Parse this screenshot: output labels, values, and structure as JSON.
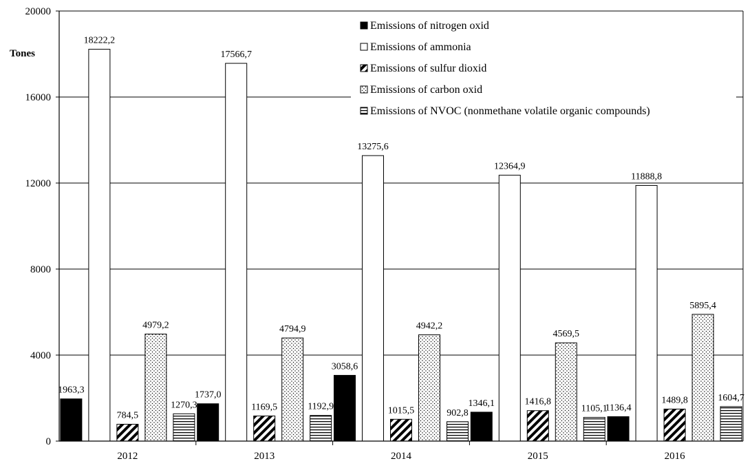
{
  "chart_data": {
    "type": "bar",
    "title": "",
    "xlabel": "",
    "ylabel": "Tones",
    "categories": [
      "2012",
      "2013",
      "2014",
      "2015",
      "2016"
    ],
    "ylim": [
      0,
      20000
    ],
    "yticks": [
      "0",
      "4000",
      "8000",
      "12000",
      "16000",
      "20000"
    ],
    "grid": "horizontal",
    "legend_position": "top-right",
    "series": [
      {
        "name": "Emissions of nitrogen oxid",
        "pattern": "solid-black",
        "values": [
          1963.3,
          1737.0,
          3058.6,
          1346.1,
          1136.4
        ],
        "labels": [
          "1963,3",
          "1737,0",
          "3058,6",
          "1346,1",
          "1136,4"
        ]
      },
      {
        "name": "Emissions of ammonia",
        "pattern": "white",
        "values": [
          18222.2,
          17566.7,
          13275.6,
          12364.9,
          11888.8
        ],
        "labels": [
          "18222,2",
          "17566,7",
          "13275,6",
          "12364,9",
          "11888,8"
        ]
      },
      {
        "name": "Emissions of sulfur dioxid",
        "pattern": "diagonal-hatch",
        "values": [
          784.5,
          1169.5,
          1015.5,
          1416.8,
          1489.8
        ],
        "labels": [
          "784,5",
          "1169,5",
          "1015,5",
          "1416,8",
          "1489,8"
        ]
      },
      {
        "name": "Emissions of carbon oxid",
        "pattern": "dots",
        "values": [
          4979.2,
          4794.9,
          4942.2,
          4569.5,
          5895.4
        ],
        "labels": [
          "4979,2",
          "4794,9",
          "4942,2",
          "4569,5",
          "5895,4"
        ]
      },
      {
        "name": "Emissions of NVOC (nonmethane volatile organic compounds)",
        "pattern": "horizontal-hatch",
        "values": [
          1270.3,
          1192.9,
          902.8,
          1105.1,
          1604.7
        ],
        "labels": [
          "1270,3",
          "1192,9",
          "902,8",
          "1105,1",
          "1604,7"
        ]
      }
    ]
  }
}
